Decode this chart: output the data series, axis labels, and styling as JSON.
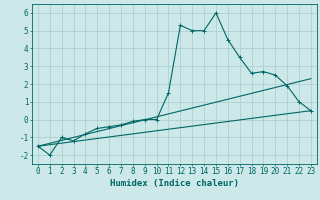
{
  "xlabel": "Humidex (Indice chaleur)",
  "ylabel": "",
  "bg_color": "#cce8e8",
  "grid_color": "#aacccc",
  "line_color": "#006666",
  "xlim": [
    -0.5,
    23.5
  ],
  "ylim": [
    -2.5,
    6.5
  ],
  "xticks": [
    0,
    1,
    2,
    3,
    4,
    5,
    6,
    7,
    8,
    9,
    10,
    11,
    12,
    13,
    14,
    15,
    16,
    17,
    18,
    19,
    20,
    21,
    22,
    23
  ],
  "yticks": [
    -2,
    -1,
    0,
    1,
    2,
    3,
    4,
    5,
    6
  ],
  "line1_x": [
    0,
    1,
    2,
    3,
    4,
    5,
    6,
    7,
    8,
    9,
    10,
    11,
    12,
    13,
    14,
    15,
    16,
    17,
    18,
    19,
    20,
    21,
    22,
    23
  ],
  "line1_y": [
    -1.5,
    -2.0,
    -1.0,
    -1.2,
    -0.8,
    -0.5,
    -0.4,
    -0.3,
    -0.1,
    0.0,
    0.0,
    1.5,
    5.3,
    5.0,
    5.0,
    6.0,
    4.5,
    3.5,
    2.6,
    2.7,
    2.5,
    1.9,
    1.0,
    0.5
  ],
  "line2_x": [
    0,
    23
  ],
  "line2_y": [
    -1.5,
    0.5
  ],
  "line3_x": [
    0,
    23
  ],
  "line3_y": [
    -1.5,
    2.3
  ],
  "marker_size": 2.5,
  "line_width": 0.8,
  "font_size_label": 6.5,
  "font_size_tick": 5.5
}
